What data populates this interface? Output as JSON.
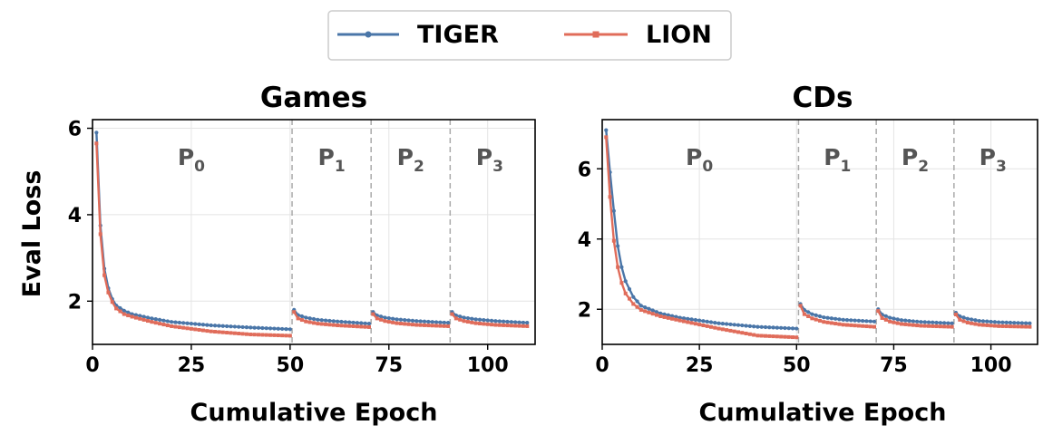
{
  "legend": {
    "items": [
      {
        "label": "TIGER",
        "color": "#4a76a8",
        "marker": "circle"
      },
      {
        "label": "LION",
        "color": "#e06c5a",
        "marker": "square"
      }
    ]
  },
  "chart_data": [
    {
      "type": "line",
      "title": "Games",
      "xlabel": "Cumulative Epoch",
      "ylabel": "Eval Loss",
      "xlim": [
        0,
        112
      ],
      "ylim": [
        1.0,
        6.2
      ],
      "xticks": [
        0,
        25,
        50,
        75,
        100
      ],
      "yticks": [
        2,
        4,
        6
      ],
      "grid": true,
      "phase_boundaries": [
        50.5,
        70.5,
        90.5
      ],
      "phase_labels": [
        {
          "base": "P",
          "sub": "0",
          "x_center": 25
        },
        {
          "base": "P",
          "sub": "1",
          "x_center": 60.5
        },
        {
          "base": "P",
          "sub": "2",
          "x_center": 80.5
        },
        {
          "base": "P",
          "sub": "3",
          "x_center": 100.5
        }
      ],
      "series": [
        {
          "name": "TIGER",
          "color": "#4a76a8",
          "marker": "circle",
          "segments": [
            {
              "x_start": 1,
              "x_end": 50,
              "start": 5.9,
              "end": 1.35,
              "pts": [
                [
                  2,
                  3.75
                ],
                [
                  3,
                  2.75
                ],
                [
                  4,
                  2.3
                ],
                [
                  5,
                  2.05
                ],
                [
                  6,
                  1.9
                ],
                [
                  8,
                  1.78
                ],
                [
                  10,
                  1.7
                ],
                [
                  15,
                  1.6
                ],
                [
                  20,
                  1.52
                ],
                [
                  30,
                  1.44
                ],
                [
                  40,
                  1.39
                ]
              ]
            },
            {
              "x_start": 51,
              "x_end": 70,
              "start": 1.8,
              "end": 1.48,
              "pts": [
                [
                  52,
                  1.68
                ],
                [
                  54,
                  1.62
                ],
                [
                  57,
                  1.57
                ],
                [
                  62,
                  1.53
                ]
              ]
            },
            {
              "x_start": 71,
              "x_end": 90,
              "start": 1.75,
              "end": 1.5,
              "pts": [
                [
                  72,
                  1.67
                ],
                [
                  74,
                  1.62
                ],
                [
                  77,
                  1.58
                ],
                [
                  82,
                  1.54
                ]
              ]
            },
            {
              "x_start": 91,
              "x_end": 110,
              "start": 1.75,
              "end": 1.5,
              "pts": [
                [
                  92,
                  1.67
                ],
                [
                  94,
                  1.62
                ],
                [
                  97,
                  1.58
                ],
                [
                  102,
                  1.54
                ]
              ]
            }
          ]
        },
        {
          "name": "LION",
          "color": "#e06c5a",
          "marker": "square",
          "segments": [
            {
              "x_start": 1,
              "x_end": 50,
              "start": 5.65,
              "end": 1.2,
              "pts": [
                [
                  2,
                  3.55
                ],
                [
                  3,
                  2.6
                ],
                [
                  4,
                  2.2
                ],
                [
                  5,
                  1.98
                ],
                [
                  6,
                  1.83
                ],
                [
                  8,
                  1.7
                ],
                [
                  10,
                  1.64
                ],
                [
                  15,
                  1.52
                ],
                [
                  20,
                  1.42
                ],
                [
                  30,
                  1.3
                ],
                [
                  40,
                  1.23
                ]
              ]
            },
            {
              "x_start": 51,
              "x_end": 70,
              "start": 1.75,
              "end": 1.4,
              "pts": [
                [
                  52,
                  1.6
                ],
                [
                  54,
                  1.53
                ],
                [
                  57,
                  1.48
                ],
                [
                  62,
                  1.44
                ]
              ]
            },
            {
              "x_start": 71,
              "x_end": 90,
              "start": 1.7,
              "end": 1.42,
              "pts": [
                [
                  72,
                  1.6
                ],
                [
                  74,
                  1.54
                ],
                [
                  77,
                  1.49
                ],
                [
                  82,
                  1.45
                ]
              ]
            },
            {
              "x_start": 91,
              "x_end": 110,
              "start": 1.7,
              "end": 1.42,
              "pts": [
                [
                  92,
                  1.6
                ],
                [
                  94,
                  1.54
                ],
                [
                  97,
                  1.49
                ],
                [
                  102,
                  1.45
                ]
              ]
            }
          ]
        }
      ]
    },
    {
      "type": "line",
      "title": "CDs",
      "xlabel": "Cumulative Epoch",
      "ylabel": "",
      "xlim": [
        0,
        112
      ],
      "ylim": [
        1.0,
        7.4
      ],
      "xticks": [
        0,
        25,
        50,
        75,
        100
      ],
      "yticks": [
        2,
        4,
        6
      ],
      "grid": true,
      "phase_boundaries": [
        50.5,
        70.5,
        90.5
      ],
      "phase_labels": [
        {
          "base": "P",
          "sub": "0",
          "x_center": 25
        },
        {
          "base": "P",
          "sub": "1",
          "x_center": 60.5
        },
        {
          "base": "P",
          "sub": "2",
          "x_center": 80.5
        },
        {
          "base": "P",
          "sub": "3",
          "x_center": 100.5
        }
      ],
      "series": [
        {
          "name": "TIGER",
          "color": "#4a76a8",
          "marker": "circle",
          "segments": [
            {
              "x_start": 1,
              "x_end": 50,
              "start": 7.1,
              "end": 1.45,
              "pts": [
                [
                  2,
                  5.9
                ],
                [
                  3,
                  4.8
                ],
                [
                  4,
                  3.8
                ],
                [
                  5,
                  3.2
                ],
                [
                  6,
                  2.8
                ],
                [
                  8,
                  2.35
                ],
                [
                  10,
                  2.1
                ],
                [
                  15,
                  1.88
                ],
                [
                  20,
                  1.76
                ],
                [
                  30,
                  1.6
                ],
                [
                  40,
                  1.5
                ]
              ]
            },
            {
              "x_start": 51,
              "x_end": 70,
              "start": 2.15,
              "end": 1.65,
              "pts": [
                [
                  52,
                  1.98
                ],
                [
                  54,
                  1.86
                ],
                [
                  57,
                  1.77
                ],
                [
                  62,
                  1.7
                ]
              ]
            },
            {
              "x_start": 71,
              "x_end": 90,
              "start": 2.0,
              "end": 1.6,
              "pts": [
                [
                  72,
                  1.85
                ],
                [
                  74,
                  1.76
                ],
                [
                  77,
                  1.69
                ],
                [
                  82,
                  1.64
                ]
              ]
            },
            {
              "x_start": 91,
              "x_end": 110,
              "start": 1.9,
              "end": 1.6,
              "pts": [
                [
                  92,
                  1.8
                ],
                [
                  94,
                  1.73
                ],
                [
                  97,
                  1.67
                ],
                [
                  102,
                  1.63
                ]
              ]
            }
          ]
        },
        {
          "name": "LION",
          "color": "#e06c5a",
          "marker": "square",
          "segments": [
            {
              "x_start": 1,
              "x_end": 50,
              "start": 6.9,
              "end": 1.2,
              "pts": [
                [
                  2,
                  5.2
                ],
                [
                  3,
                  3.95
                ],
                [
                  4,
                  3.2
                ],
                [
                  5,
                  2.75
                ],
                [
                  6,
                  2.45
                ],
                [
                  8,
                  2.15
                ],
                [
                  10,
                  1.98
                ],
                [
                  15,
                  1.8
                ],
                [
                  20,
                  1.68
                ],
                [
                  30,
                  1.45
                ],
                [
                  40,
                  1.25
                ]
              ]
            },
            {
              "x_start": 51,
              "x_end": 70,
              "start": 2.1,
              "end": 1.5,
              "pts": [
                [
                  52,
                  1.86
                ],
                [
                  54,
                  1.74
                ],
                [
                  57,
                  1.64
                ],
                [
                  62,
                  1.56
                ]
              ]
            },
            {
              "x_start": 71,
              "x_end": 90,
              "start": 1.95,
              "end": 1.5,
              "pts": [
                [
                  72,
                  1.75
                ],
                [
                  74,
                  1.65
                ],
                [
                  77,
                  1.58
                ],
                [
                  82,
                  1.53
                ]
              ]
            },
            {
              "x_start": 91,
              "x_end": 110,
              "start": 1.85,
              "end": 1.5,
              "pts": [
                [
                  92,
                  1.7
                ],
                [
                  94,
                  1.62
                ],
                [
                  97,
                  1.56
                ],
                [
                  102,
                  1.52
                ]
              ]
            }
          ]
        }
      ]
    }
  ]
}
